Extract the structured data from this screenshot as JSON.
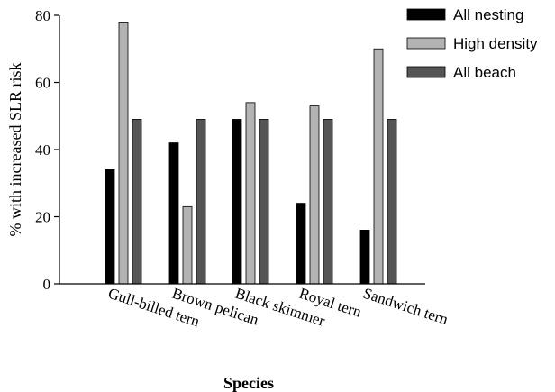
{
  "chart_data": {
    "type": "bar",
    "title": "",
    "xlabel": "Species",
    "ylabel": "% with increased SLR risk",
    "ylim": [
      0,
      80
    ],
    "yticks": [
      0,
      20,
      40,
      60,
      80
    ],
    "grid": false,
    "legend_position": "top-right",
    "categories": [
      "Gull-billed tern",
      "Brown pelican",
      "Black skimmer",
      "Royal tern",
      "Sandwich tern"
    ],
    "series": [
      {
        "name": "All nesting",
        "color": "#000000",
        "values": [
          34,
          42,
          49,
          24,
          16
        ]
      },
      {
        "name": "High density",
        "color": "#b3b3b3",
        "values": [
          78,
          23,
          54,
          53,
          70
        ]
      },
      {
        "name": "All beach",
        "color": "#555555",
        "values": [
          49,
          49,
          49,
          49,
          49
        ]
      }
    ]
  }
}
